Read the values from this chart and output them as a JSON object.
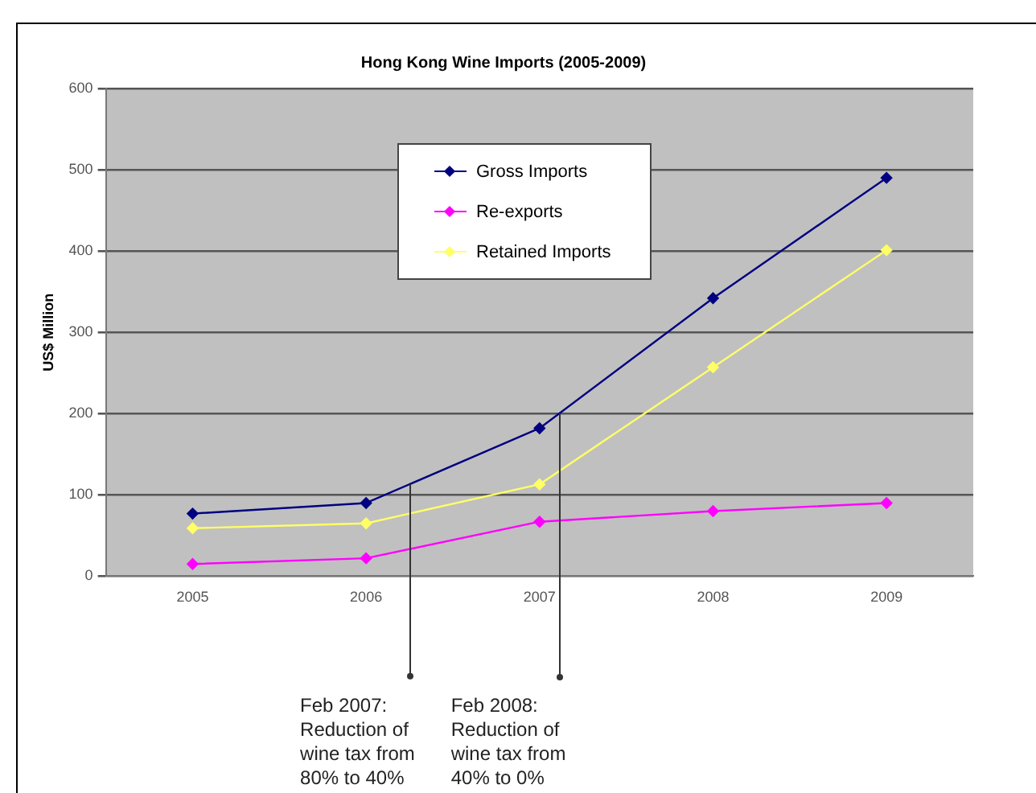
{
  "chart_data": {
    "type": "line",
    "title": "Hong Kong Wine Imports (2005-2009)",
    "ylabel": "US$ Million",
    "categories": [
      "2005",
      "2006",
      "2007",
      "2008",
      "2009"
    ],
    "series": [
      {
        "name": "Gross Imports",
        "color": "#000080",
        "values": [
          77,
          90,
          182,
          342,
          490
        ]
      },
      {
        "name": "Re-exports",
        "color": "#ff00ff",
        "values": [
          15,
          22,
          67,
          80,
          90
        ]
      },
      {
        "name": "Retained Imports",
        "color": "#ffff66",
        "values": [
          59,
          65,
          113,
          257,
          401
        ]
      }
    ],
    "ylim": [
      0,
      600
    ],
    "yticks": [
      0,
      100,
      200,
      300,
      400,
      500,
      600
    ],
    "grid": "y",
    "legend": "top",
    "marker": "diamond",
    "line_style": "solid",
    "annotations": [
      "Feb 2007: Reduction of wine tax from 80% to 40%",
      "Feb 2008: Reduction of wine tax from 40% to 0%"
    ]
  }
}
